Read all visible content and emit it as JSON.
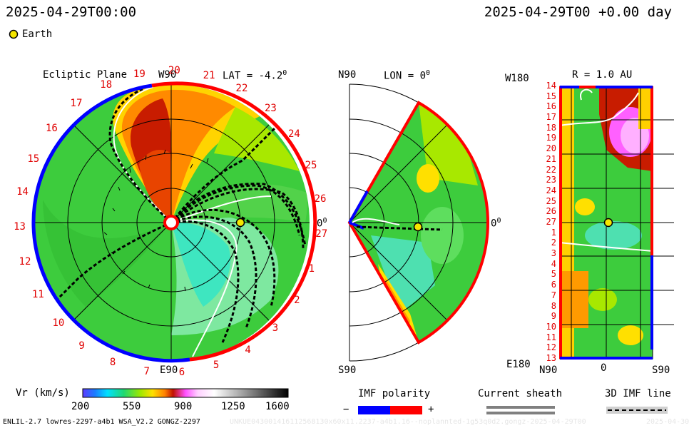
{
  "header": {
    "timestamp_left": "2025-04-29T00:00",
    "timestamp_right": "2025-04-29T00 +0.00 day",
    "legend_item": "Earth",
    "legend_color": "#f5e600"
  },
  "ecliptic": {
    "title": "Ecliptic Plane",
    "top_label": "W90",
    "bottom_label": "E90",
    "right_label": "0",
    "lat_label": "LAT = -4.2",
    "degree_mark": "0",
    "ring_numbers": [
      "19",
      "20",
      "21",
      "22",
      "23",
      "24",
      "25",
      "26",
      "27",
      "1",
      "2",
      "3",
      "4",
      "5",
      "6",
      "7",
      "8",
      "9",
      "10",
      "11",
      "12",
      "13",
      "14",
      "15",
      "16",
      "17",
      "18"
    ]
  },
  "meridional": {
    "top_label": "N90",
    "bottom_label": "S90",
    "right_label": "0",
    "lon_label": "LON = 0",
    "degree_mark": "0"
  },
  "synoptic": {
    "left_label": "W180",
    "bottom_left_label": "E180",
    "r_label": "R = 1.0 AU",
    "x_ticks": [
      "N90",
      "0",
      "S90"
    ],
    "rows": [
      "14",
      "15",
      "16",
      "17",
      "18",
      "19",
      "20",
      "21",
      "22",
      "23",
      "24",
      "25",
      "26",
      "27",
      "1",
      "2",
      "3",
      "4",
      "5",
      "6",
      "7",
      "8",
      "9",
      "10",
      "11",
      "12",
      "13"
    ]
  },
  "colorbar": {
    "label": "Vr (km/s)",
    "ticks": [
      "200",
      "550",
      "900",
      "1250",
      "1600"
    ]
  },
  "imf_polarity": {
    "label": "IMF polarity",
    "minus": "−",
    "plus": "+",
    "negative_color": "#0000ff",
    "positive_color": "#ff0000"
  },
  "current_sheath": {
    "label": "Current sheath"
  },
  "imf_line": {
    "label": "3D IMF line"
  },
  "footer": {
    "model_info": "ENLIL-2.7 lowres-2297-a4b1 WSA_V2.2 GONGZ-2297",
    "run_id": "UNKUE043001416112568130x60x11.2237-a4b1.16--noplannted-1g53q0d2.gongz-2025-04-29T00",
    "right_date": "2025-04-30"
  }
}
